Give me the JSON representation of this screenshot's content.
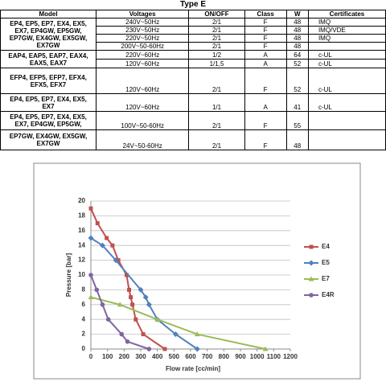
{
  "title": "Type E",
  "table": {
    "header": [
      "Model",
      "Voltages",
      "ON/OFF",
      "Class",
      "W",
      "Certificates"
    ],
    "groups": [
      {
        "model": [
          "EP4, EP5, EP7, EX4, EX5,",
          "EX7, EP4GW, EP5GW,",
          "EP7GW, EX4GW, EX5GW,",
          "EX7GW"
        ],
        "rows": [
          {
            "voltage": "240V~50Hz",
            "on_off": "2/1",
            "class": "F",
            "w": 48,
            "cert": "IMQ"
          },
          {
            "voltage": "230V~50Hz",
            "on_off": "2/1",
            "class": "F",
            "w": 48,
            "cert": "IMQ/VDE"
          },
          {
            "voltage": "220V~50Hz",
            "on_off": "2/1",
            "class": "F",
            "w": 48,
            "cert": "IMQ"
          },
          {
            "voltage": "200V~50-60Hz",
            "on_off": "2/1",
            "class": "F",
            "w": 48
          }
        ]
      },
      {
        "model": [
          "EAP4, EAP5, EAP7, EAX4,",
          "EAX5, EAX7"
        ],
        "rows": [
          {
            "voltage": "220V~60Hz",
            "on_off": "1/2",
            "class": "A",
            "w": 64,
            "cert": "c-UL"
          },
          {
            "voltage": "120V~60Hz",
            "on_off": "1/1,5",
            "class": "A",
            "w": 52,
            "cert": "c-UL"
          }
        ]
      },
      {
        "model": [
          "EFP4, EFP5, EFP7, EFX4,",
          "EFX5, EFX7"
        ],
        "rows": [
          {
            "voltage": "120V~60Hz",
            "on_off": "2/1",
            "class": "F",
            "w": 52,
            "cert": "c-UL"
          }
        ]
      },
      {
        "model": [
          "EP4, EP5, EP7, EX4, EX5,",
          "EX7"
        ],
        "rows": [
          {
            "voltage": "120V~60Hz",
            "on_off": "1/1",
            "class": "A",
            "w": 41,
            "cert": "c-UL"
          }
        ]
      },
      {
        "model": [
          "EP4, EP5, EP7, EX4, EX5,",
          "EX7, EP4GW, EP5GW,"
        ],
        "rows": [
          {
            "voltage": "100V~50-60Hz",
            "on_off": "2/1",
            "class": "F",
            "w": 55
          }
        ]
      },
      {
        "model": [
          "EP7GW, EX4GW, EX5GW,",
          "EX7GW"
        ],
        "rows": [
          {
            "voltage": "24V~50-60Hz",
            "on_off": "2/1",
            "class": "F",
            "w": 48
          }
        ]
      }
    ]
  },
  "chart_data": {
    "type": "line",
    "x_label": "Flow rate [cc/min]",
    "y_label": "Pressure [bar]",
    "xlim": [
      0,
      1200
    ],
    "xticks": [
      0,
      100,
      200,
      300,
      400,
      500,
      600,
      700,
      800,
      900,
      1000,
      1100,
      1200
    ],
    "ylim": [
      0,
      20
    ],
    "yticks": [
      0,
      2,
      4,
      6,
      8,
      10,
      12,
      14,
      16,
      18,
      20
    ],
    "grid": true,
    "series": [
      {
        "name": "E4",
        "color": "#c0504d",
        "marker": "square",
        "x": [
          0,
          40,
          95,
          130,
          165,
          215,
          230,
          240,
          250,
          270,
          315,
          445
        ],
        "values": [
          19,
          17,
          15,
          14,
          12,
          10,
          8,
          7,
          6,
          4,
          2,
          0
        ]
      },
      {
        "name": "E5",
        "color": "#4f81bd",
        "marker": "diamond",
        "x": [
          0,
          70,
          150,
          300,
          330,
          350,
          400,
          510,
          640
        ],
        "values": [
          15,
          14,
          12,
          8,
          7,
          6,
          4,
          2,
          0
        ]
      },
      {
        "name": "E7",
        "color": "#9bbb59",
        "marker": "triangle",
        "x": [
          0,
          175,
          400,
          640,
          1050
        ],
        "values": [
          7,
          6,
          4,
          2,
          0
        ]
      },
      {
        "name": "E4R",
        "color": "#8064a2",
        "marker": "circle",
        "x": [
          0,
          35,
          70,
          105,
          185,
          220,
          350
        ],
        "values": [
          10,
          8,
          6,
          4,
          2,
          1,
          0
        ]
      }
    ]
  }
}
